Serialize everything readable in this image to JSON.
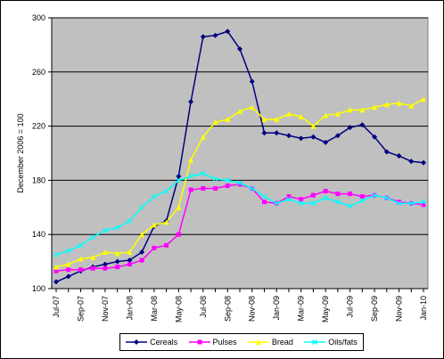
{
  "chart_data": {
    "type": "line",
    "ylabel": "December 2006 = 100",
    "ylim": [
      100,
      300
    ],
    "yticks": [
      100,
      140,
      180,
      220,
      260,
      300
    ],
    "grid": true,
    "legend_position": "bottom",
    "plot_background": "#c0c0c0",
    "categories": [
      "Jul-07",
      "Aug-07",
      "Sep-07",
      "Oct-07",
      "Nov-07",
      "Dec-07",
      "Jan-08",
      "Feb-08",
      "Mar-08",
      "Apr-08",
      "May-08",
      "Jun-08",
      "Jul-08",
      "Aug-08",
      "Sep-08",
      "Oct-08",
      "Nov-08",
      "Dec-08",
      "Jan-09",
      "Feb-09",
      "Mar-09",
      "Apr-09",
      "May-09",
      "Jun-09",
      "Jul-09",
      "Aug-09",
      "Sep-09",
      "Oct-09",
      "Nov-09",
      "Dec-09",
      "Jan-10"
    ],
    "tick_labels": [
      "Jul-07",
      "Sep-07",
      "Nov-07",
      "Jan-08",
      "Mar-08",
      "May-08",
      "Jul-08",
      "Sep-08",
      "Nov-08",
      "Jan-09",
      "Mar-09",
      "May-09",
      "Jul-09",
      "Sep-09",
      "Nov-09",
      "Jan-10"
    ],
    "series": [
      {
        "name": "Cereals",
        "color": "#000080",
        "marker": "diamond",
        "values": [
          105,
          109,
          113,
          116,
          118,
          120,
          121,
          127,
          146,
          150,
          183,
          238,
          286,
          287,
          290,
          277,
          253,
          215,
          215,
          213,
          211,
          212,
          208,
          213,
          219,
          221,
          212,
          201,
          198,
          194,
          193
        ]
      },
      {
        "name": "Pulses",
        "color": "#ff00ff",
        "marker": "square",
        "values": [
          113,
          114,
          114,
          115,
          115,
          116,
          118,
          121,
          130,
          132,
          140,
          173,
          174,
          174,
          176,
          177,
          174,
          164,
          163,
          168,
          166,
          169,
          172,
          170,
          170,
          168,
          169,
          167,
          164,
          163,
          162
        ]
      },
      {
        "name": "Bread",
        "color": "#ffff00",
        "marker": "triangle",
        "values": [
          116,
          118,
          122,
          123,
          127,
          126,
          127,
          140,
          147,
          149,
          160,
          195,
          212,
          223,
          225,
          231,
          234,
          225,
          225,
          229,
          227,
          220,
          228,
          229,
          232,
          232,
          234,
          236,
          237,
          235,
          240
        ]
      },
      {
        "name": "Oils/fats",
        "color": "#00ffff",
        "marker": "x",
        "values": [
          125,
          128,
          132,
          138,
          143,
          145,
          150,
          160,
          168,
          172,
          180,
          183,
          185,
          181,
          180,
          178,
          174,
          168,
          163,
          166,
          163,
          163,
          167,
          164,
          161,
          165,
          169,
          167,
          163,
          163,
          164
        ]
      }
    ]
  }
}
